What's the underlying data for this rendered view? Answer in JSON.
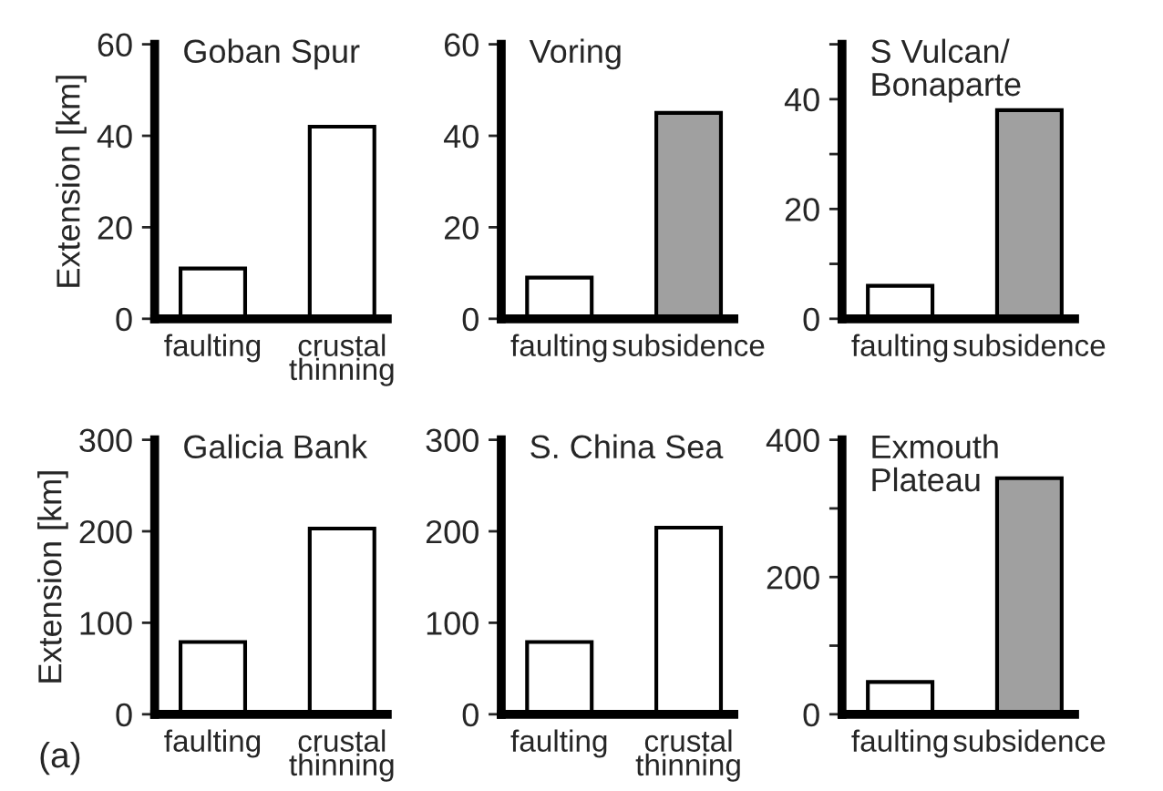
{
  "chart_data": [
    {
      "type": "bar",
      "title": "Goban Spur",
      "ylabel": "Extension [km]",
      "categories": [
        "faulting",
        "crustal\nthinning"
      ],
      "values": [
        11,
        42
      ],
      "colors": [
        "#ffffff",
        "#ffffff"
      ],
      "ylim": [
        0,
        60
      ],
      "yticks": [
        0,
        20,
        40,
        60
      ],
      "grid": false,
      "legend": false
    },
    {
      "type": "bar",
      "title": "Voring",
      "categories": [
        "faulting",
        "subsidence"
      ],
      "values": [
        9,
        45
      ],
      "colors": [
        "#ffffff",
        "#a0a0a0"
      ],
      "ylim": [
        0,
        60
      ],
      "yticks": [
        0,
        20,
        40,
        60
      ],
      "grid": false,
      "legend": false
    },
    {
      "type": "bar",
      "title": "S Vulcan/\nBonaparte",
      "categories": [
        "faulting",
        "subsidence"
      ],
      "values": [
        6,
        38
      ],
      "colors": [
        "#ffffff",
        "#a0a0a0"
      ],
      "ylim": [
        0,
        50
      ],
      "yticks": [
        0,
        {
          "value": 10,
          "label": null
        },
        20,
        {
          "value": 30,
          "label": null
        },
        40,
        {
          "value": 50,
          "label": null
        }
      ],
      "grid": false,
      "legend": false
    },
    {
      "type": "bar",
      "title": "Galicia Bank",
      "ylabel": "Extension [km]",
      "categories": [
        "faulting",
        "crustal\nthinning"
      ],
      "values": [
        79,
        203
      ],
      "colors": [
        "#ffffff",
        "#ffffff"
      ],
      "ylim": [
        0,
        300
      ],
      "yticks": [
        0,
        100,
        200,
        300
      ],
      "grid": false,
      "legend": false,
      "annotations": [
        "(a)"
      ]
    },
    {
      "type": "bar",
      "title": "S. China Sea",
      "categories": [
        "faulting",
        "crustal\nthinning"
      ],
      "values": [
        79,
        204
      ],
      "colors": [
        "#ffffff",
        "#ffffff"
      ],
      "ylim": [
        0,
        300
      ],
      "yticks": [
        0,
        100,
        200,
        300
      ],
      "grid": false,
      "legend": false
    },
    {
      "type": "bar",
      "title": "Exmouth\nPlateau",
      "categories": [
        "faulting",
        "subsidence"
      ],
      "values": [
        47,
        344
      ],
      "colors": [
        "#ffffff",
        "#a0a0a0"
      ],
      "ylim": [
        0,
        400
      ],
      "yticks": [
        0,
        {
          "value": 100,
          "label": null
        },
        200,
        {
          "value": 300,
          "label": null
        },
        400
      ],
      "grid": false,
      "legend": false
    }
  ]
}
